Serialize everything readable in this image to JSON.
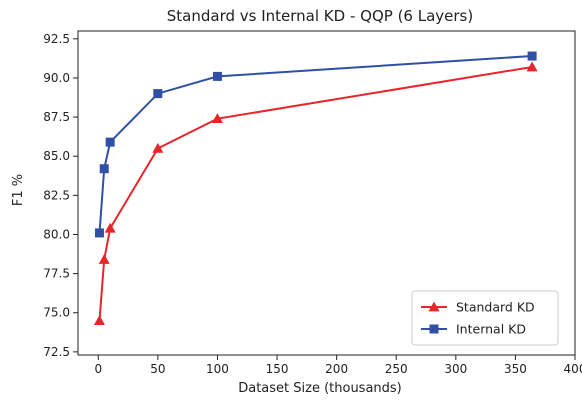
{
  "chart_data": {
    "type": "line",
    "title": "Standard vs Internal KD - QQP (6 Layers)",
    "xlabel": "Dataset Size (thousands)",
    "ylabel": "F1 %",
    "xlim": [
      -17,
      400
    ],
    "ylim": [
      72.3,
      93.0
    ],
    "xticks": [
      0,
      50,
      100,
      150,
      200,
      250,
      300,
      350,
      400
    ],
    "yticks": [
      72.5,
      75.0,
      77.5,
      80.0,
      82.5,
      85.0,
      87.5,
      90.0,
      92.5
    ],
    "xtick_labels": [
      "0",
      "50",
      "100",
      "150",
      "200",
      "250",
      "300",
      "350",
      "400"
    ],
    "ytick_labels": [
      "72.5",
      "75.0",
      "77.5",
      "80.0",
      "82.5",
      "85.0",
      "87.5",
      "90.0",
      "92.5"
    ],
    "grid": false,
    "legend_position": "bottom-right",
    "series": [
      {
        "name": "Standard KD",
        "color": "#e8252b",
        "marker": "triangle",
        "x": [
          1,
          5,
          10,
          50,
          100,
          364
        ],
        "y": [
          74.5,
          78.4,
          80.4,
          85.5,
          87.4,
          90.7
        ]
      },
      {
        "name": "Internal KD",
        "color": "#3050a5",
        "marker": "square",
        "x": [
          1,
          5,
          10,
          50,
          100,
          364
        ],
        "y": [
          80.1,
          84.2,
          85.9,
          89.0,
          90.1,
          91.4
        ]
      }
    ]
  }
}
